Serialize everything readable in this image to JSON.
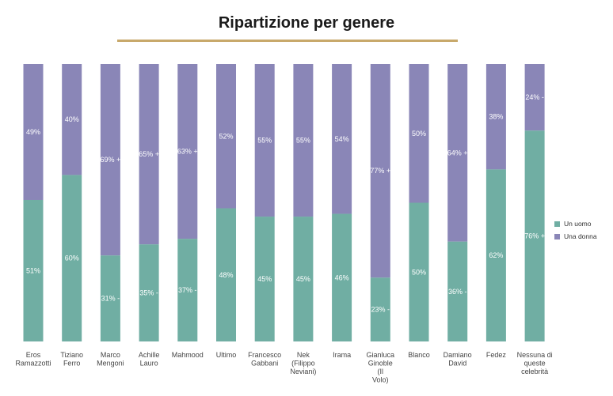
{
  "title": "Ripartizione per genere",
  "colors": {
    "uomo": "#70aea3",
    "donna": "#8a86b7"
  },
  "legend": [
    {
      "label": "Un uomo",
      "color": "#70aea3"
    },
    {
      "label": "Una donna",
      "color": "#8a86b7"
    }
  ],
  "chart_data": {
    "type": "bar",
    "stacked": true,
    "percent": true,
    "title": "Ripartizione per genere",
    "categories": [
      [
        "Eros",
        "Ramazzotti"
      ],
      [
        "Tiziano",
        "Ferro"
      ],
      [
        "Marco",
        "Mengoni"
      ],
      [
        "Achille",
        "Lauro"
      ],
      [
        "Mahmood"
      ],
      [
        "Ultimo"
      ],
      [
        "Francesco",
        "Gabbani"
      ],
      [
        "Nek",
        "(Filippo",
        "Neviani)"
      ],
      [
        "Irama"
      ],
      [
        "Gianluca",
        "Ginoble",
        "(Il",
        "Volo)"
      ],
      [
        "Blanco"
      ],
      [
        "Damiano",
        "David"
      ],
      [
        "Fedez"
      ],
      [
        "Nessuna di",
        "queste",
        "celebrità"
      ]
    ],
    "series": [
      {
        "name": "Un uomo",
        "values": [
          51,
          60,
          31,
          35,
          37,
          48,
          45,
          45,
          46,
          23,
          50,
          36,
          62,
          76
        ]
      },
      {
        "name": "Una donna",
        "values": [
          49,
          40,
          69,
          65,
          63,
          52,
          55,
          55,
          54,
          77,
          50,
          64,
          38,
          24
        ]
      }
    ],
    "data_labels": {
      "Un uomo": [
        "51%",
        "60%",
        "31% -",
        "35% -",
        "37% -",
        "48%",
        "45%",
        "45%",
        "46%",
        "23% -",
        "50%",
        "36% -",
        "62%",
        "76% +"
      ],
      "Una donna": [
        "49%",
        "40%",
        "69% +",
        "65% +",
        "63% +",
        "52%",
        "55%",
        "55%",
        "54%",
        "77% +",
        "50%",
        "64% +",
        "38%",
        "24% -"
      ]
    },
    "ylim": [
      0,
      100
    ],
    "legend_position": "right"
  }
}
